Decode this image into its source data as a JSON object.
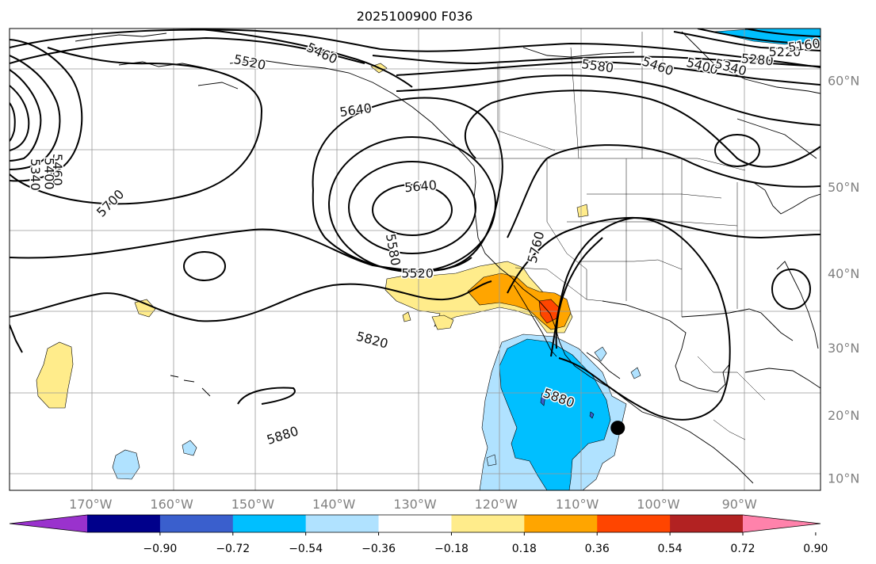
{
  "title": "2025100900 F036",
  "map": {
    "lon_ticks": [
      "170°W",
      "160°W",
      "150°W",
      "140°W",
      "130°W",
      "120°W",
      "110°W",
      "100°W",
      "90°W"
    ],
    "lon_values": [
      -170,
      -160,
      -150,
      -140,
      -130,
      -120,
      -110,
      -100,
      -90
    ],
    "lat_ticks": [
      "60°N",
      "50°N",
      "40°N",
      "30°N",
      "20°N",
      "10°N"
    ],
    "lat_values": [
      60,
      50,
      40,
      30,
      20,
      10
    ],
    "extent": {
      "lon_min": -180,
      "lon_max": -80,
      "lat_min": 8,
      "lat_max": 64
    }
  },
  "contour_labels": [
    {
      "text": "5460",
      "lon": -141.5,
      "lat": 62.1,
      "rot": 25
    },
    {
      "text": "5520",
      "lon": -150.4,
      "lat": 61.4,
      "rot": 12
    },
    {
      "text": "5640",
      "lon": -137.3,
      "lat": 57.4,
      "rot": -8
    },
    {
      "text": "5640",
      "lon": -129.3,
      "lat": 50.0,
      "rot": -5
    },
    {
      "text": "5580",
      "lon": -132.8,
      "lat": 42.9,
      "rot": 80
    },
    {
      "text": "5520",
      "lon": -129.7,
      "lat": 39.9,
      "rot": 0
    },
    {
      "text": "5700",
      "lon": -167.5,
      "lat": 48.2,
      "rot": -45
    },
    {
      "text": "5760",
      "lon": -115.0,
      "lat": 43.2,
      "rot": -75
    },
    {
      "text": "5820",
      "lon": -135.3,
      "lat": 31.0,
      "rot": 15
    },
    {
      "text": "5880",
      "lon": -112.3,
      "lat": 22.5,
      "rot": 20
    },
    {
      "text": "5880",
      "lon": -146.3,
      "lat": 16.7,
      "rot": -18
    },
    {
      "text": "5580",
      "lon": -107.5,
      "lat": 61.1,
      "rot": 8
    },
    {
      "text": "5460",
      "lon": -100.1,
      "lat": 61.1,
      "rot": 20
    },
    {
      "text": "5400",
      "lon": -94.6,
      "lat": 61.1,
      "rot": 15
    },
    {
      "text": "5340",
      "lon": -91.1,
      "lat": 61.0,
      "rot": 15
    },
    {
      "text": "5280",
      "lon": -87.8,
      "lat": 61.6,
      "rot": 5
    },
    {
      "text": "5220",
      "lon": -84.4,
      "lat": 62.2,
      "rot": 0
    },
    {
      "text": "5160",
      "lon": -82.0,
      "lat": 62.7,
      "rot": -8
    },
    {
      "text": "5460",
      "lon": -174.2,
      "lat": 51.8,
      "rot": 90
    },
    {
      "text": "5400",
      "lon": -175.2,
      "lat": 51.4,
      "rot": 90
    },
    {
      "text": "5340",
      "lon": -176.9,
      "lat": 51.3,
      "rot": 90
    }
  ],
  "marker": {
    "lon": -105.0,
    "lat": 18.0
  },
  "colorbar": {
    "tick_labels": [
      "−0.90",
      "−0.72",
      "−0.54",
      "−0.36",
      "−0.18",
      "0.18",
      "0.36",
      "0.54",
      "0.72",
      "0.90"
    ],
    "levels": [
      -0.9,
      -0.72,
      -0.54,
      -0.36,
      -0.18,
      0.18,
      0.36,
      0.54,
      0.72,
      0.9
    ],
    "colors": [
      "#9a32cd",
      "#00008b",
      "#3a5fcd",
      "#00bfff",
      "#b0e2ff",
      "#ffffff",
      "#ffec8b",
      "#ffa500",
      "#ff4500",
      "#b22222",
      "#ff82ab"
    ]
  }
}
